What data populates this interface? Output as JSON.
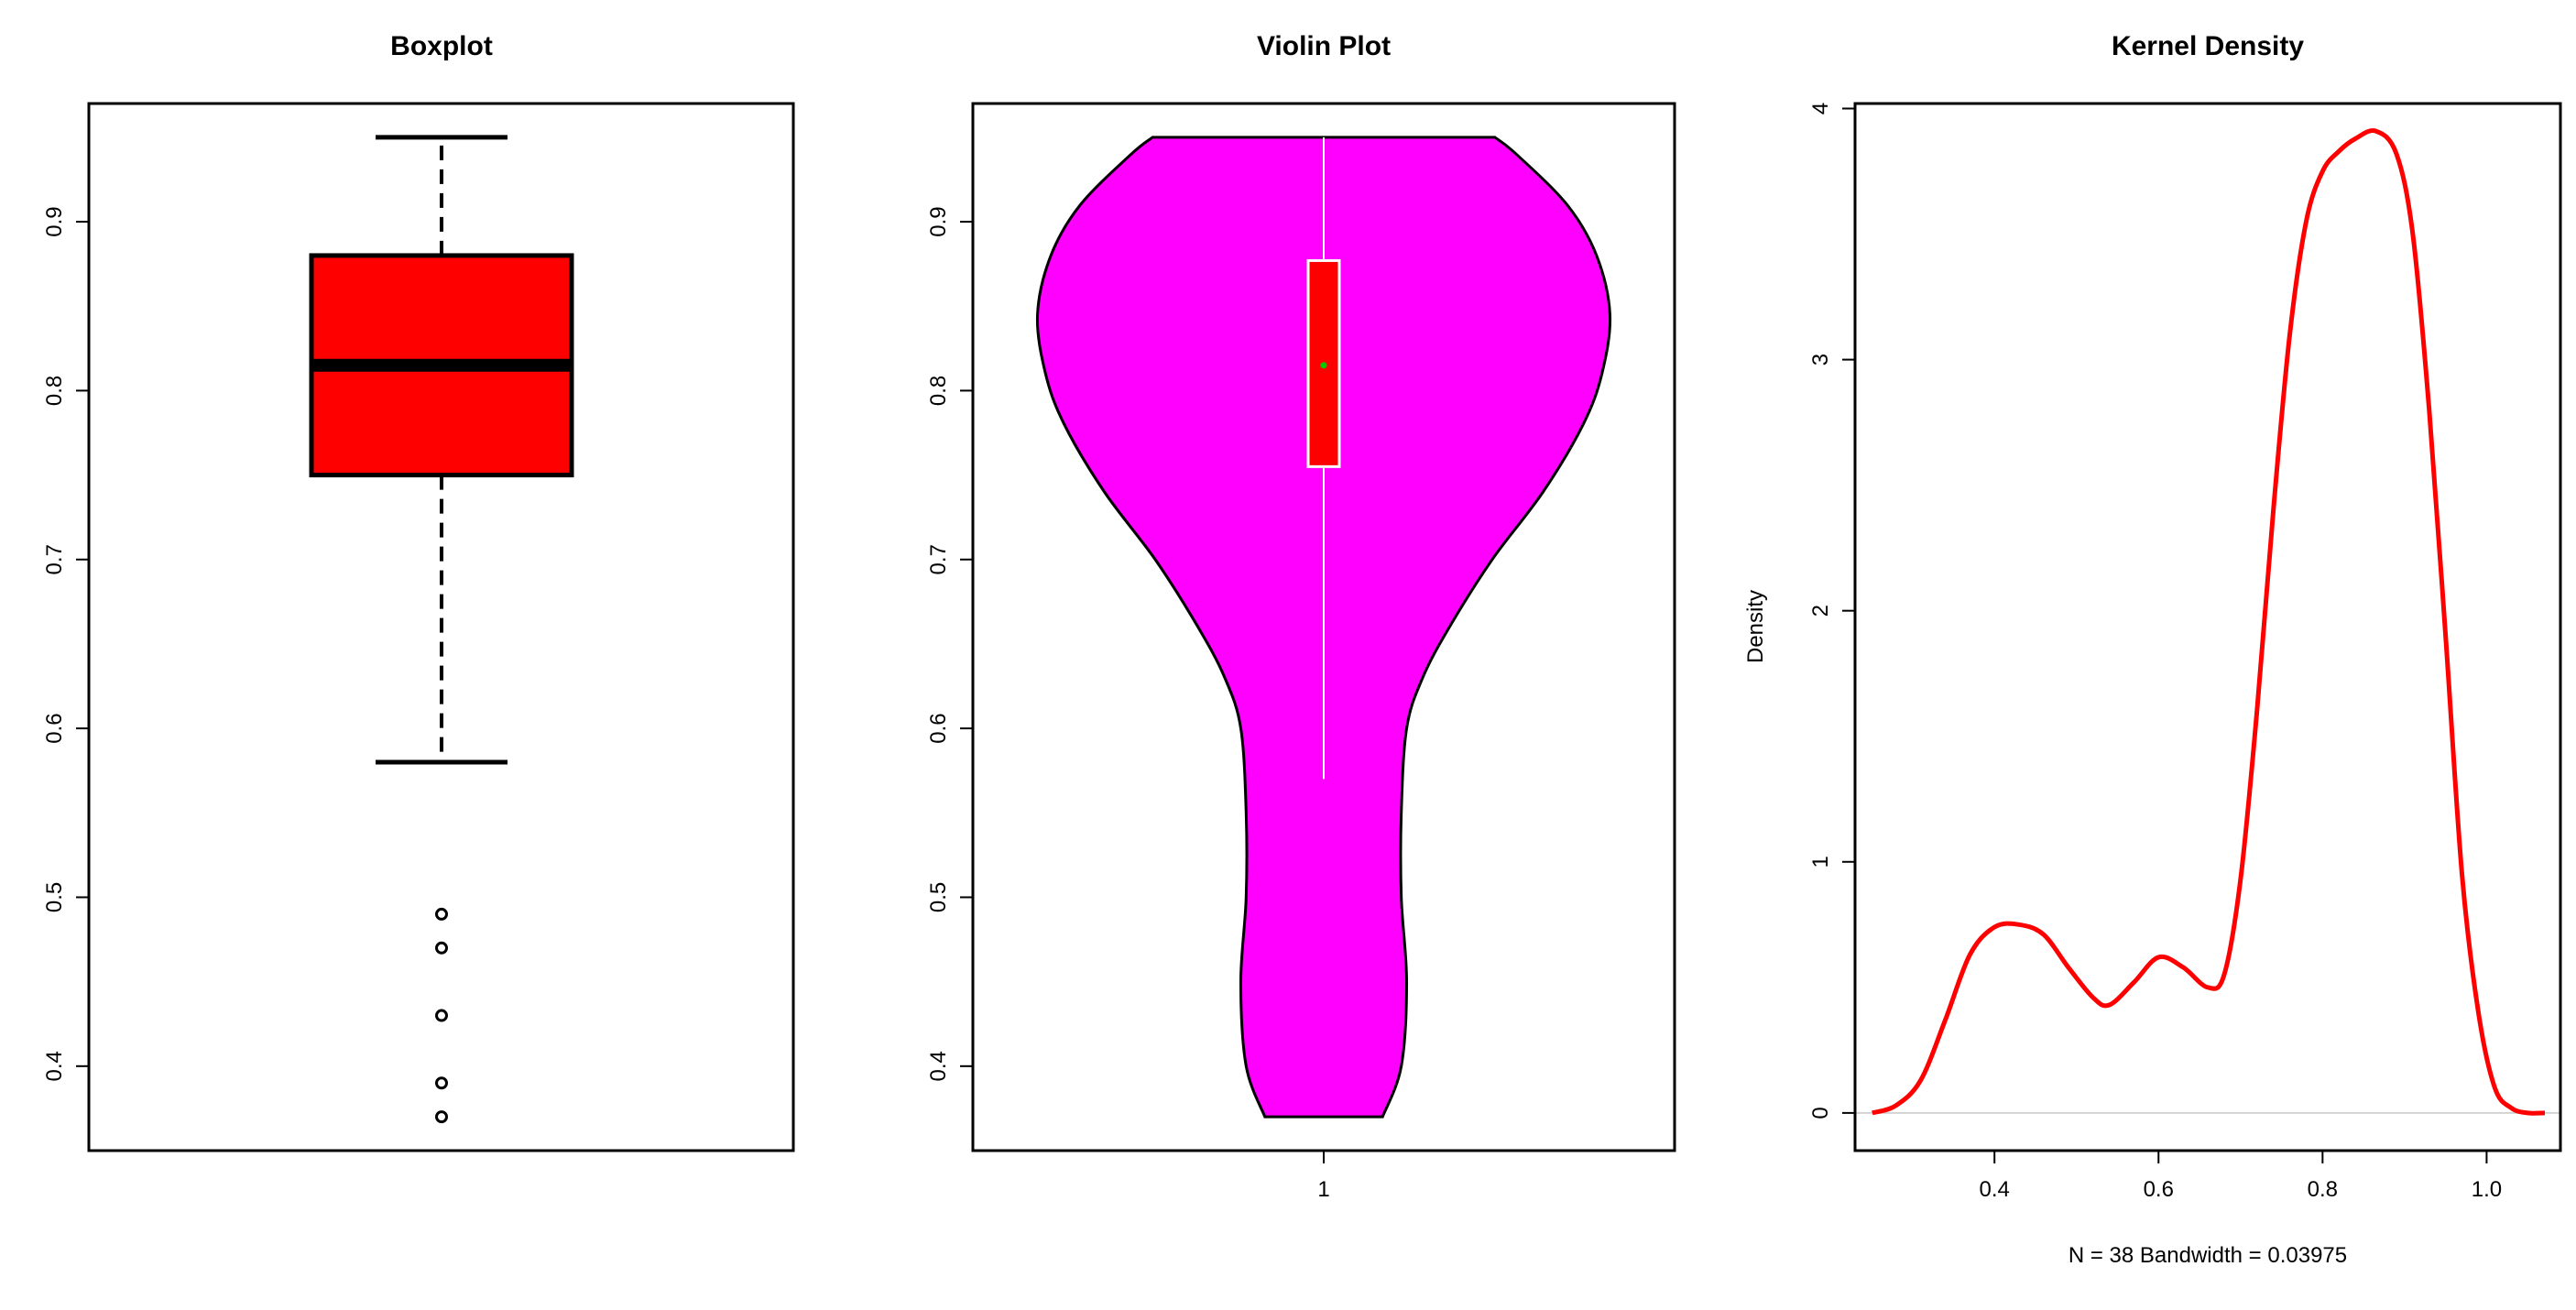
{
  "colors": {
    "box_fill": "#ff0000",
    "violin_fill": "#ff00ff",
    "density_line": "#ff0000",
    "mean_dot": "#00cc00",
    "zero_line": "#d3d3d3"
  },
  "chart_data": [
    {
      "type": "boxplot",
      "title": "Boxplot",
      "ylim": [
        0.35,
        0.97
      ],
      "yticks": [
        0.4,
        0.5,
        0.6,
        0.7,
        0.8,
        0.9
      ],
      "ytick_labels": [
        "0.4",
        "0.5",
        "0.6",
        "0.7",
        "0.8",
        "0.9"
      ],
      "stats": {
        "whisker_low": 0.58,
        "q1": 0.75,
        "median": 0.815,
        "q3": 0.88,
        "whisker_high": 0.95
      },
      "outliers": [
        0.49,
        0.47,
        0.43,
        0.39,
        0.37
      ]
    },
    {
      "type": "violin",
      "title": "Violin Plot",
      "ylim": [
        0.35,
        0.97
      ],
      "yticks": [
        0.4,
        0.5,
        0.6,
        0.7,
        0.8,
        0.9
      ],
      "ytick_labels": [
        "0.4",
        "0.5",
        "0.6",
        "0.7",
        "0.8",
        "0.9"
      ],
      "xtick_labels": [
        "1"
      ],
      "y_range": [
        0.37,
        0.95
      ],
      "profile": [
        {
          "y": 0.37,
          "w": 0.22
        },
        {
          "y": 0.4,
          "w": 0.29
        },
        {
          "y": 0.45,
          "w": 0.31
        },
        {
          "y": 0.5,
          "w": 0.29
        },
        {
          "y": 0.55,
          "w": 0.29
        },
        {
          "y": 0.6,
          "w": 0.31
        },
        {
          "y": 0.63,
          "w": 0.37
        },
        {
          "y": 0.66,
          "w": 0.47
        },
        {
          "y": 0.7,
          "w": 0.63
        },
        {
          "y": 0.74,
          "w": 0.82
        },
        {
          "y": 0.78,
          "w": 0.97
        },
        {
          "y": 0.81,
          "w": 1.04
        },
        {
          "y": 0.845,
          "w": 1.07
        },
        {
          "y": 0.88,
          "w": 1.02
        },
        {
          "y": 0.91,
          "w": 0.91
        },
        {
          "y": 0.94,
          "w": 0.72
        },
        {
          "y": 0.95,
          "w": 0.64
        }
      ],
      "inner_box": {
        "whisker_low": 0.57,
        "q1": 0.755,
        "median": 0.815,
        "q3": 0.877,
        "whisker_high": 0.95
      }
    },
    {
      "type": "line",
      "title": "Kernel Density",
      "ylabel": "Density",
      "xlabel": "N = 38   Bandwidth = 0.03975",
      "xlim": [
        0.23,
        1.09
      ],
      "ylim": [
        -0.15,
        4.02
      ],
      "xticks": [
        0.4,
        0.6,
        0.8,
        1.0
      ],
      "xtick_labels": [
        "0.4",
        "0.6",
        "0.8",
        "1.0"
      ],
      "yticks": [
        0,
        1,
        2,
        3,
        4
      ],
      "ytick_labels": [
        "0",
        "1",
        "2",
        "3",
        "4"
      ],
      "series": [
        {
          "x": [
            0.251,
            0.28,
            0.31,
            0.34,
            0.37,
            0.4,
            0.43,
            0.46,
            0.49,
            0.52,
            0.54,
            0.57,
            0.6,
            0.63,
            0.66,
            0.68,
            0.7,
            0.72,
            0.74,
            0.76,
            0.78,
            0.8,
            0.82,
            0.84,
            0.865,
            0.89,
            0.91,
            0.93,
            0.95,
            0.97,
            0.99,
            1.01,
            1.03,
            1.05,
            1.071
          ],
          "y": [
            0.0,
            0.03,
            0.13,
            0.37,
            0.63,
            0.74,
            0.75,
            0.71,
            0.58,
            0.46,
            0.43,
            0.52,
            0.62,
            0.58,
            0.5,
            0.55,
            0.93,
            1.6,
            2.4,
            3.1,
            3.55,
            3.75,
            3.83,
            3.88,
            3.91,
            3.82,
            3.5,
            2.8,
            1.9,
            0.95,
            0.4,
            0.1,
            0.02,
            0.0,
            0.0
          ]
        }
      ]
    }
  ]
}
